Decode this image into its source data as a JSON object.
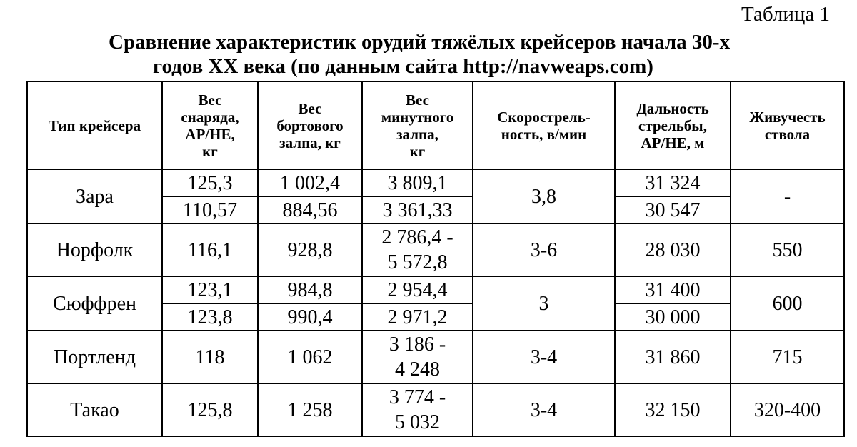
{
  "table_label": "Таблица 1",
  "title": {
    "line1": "Сравнение характеристик орудий тяжёлых крейсеров начала 30-х",
    "line2": "годов XX века (по данным сайта http://navweaps.com)"
  },
  "headers": [
    [
      "Тип крейсера"
    ],
    [
      "Вес",
      "снаряда,",
      "AP/HE,",
      "кг"
    ],
    [
      "Вес",
      "бортового",
      "залпа, кг"
    ],
    [
      "Вес",
      "минутного",
      "залпа,",
      "кг"
    ],
    [
      "Скорострель-",
      "ность, в/мин"
    ],
    [
      "Дальность",
      "стрельбы,",
      "AP/HE, м"
    ],
    [
      "Живучесть",
      "ствола"
    ]
  ],
  "rows": {
    "zara": {
      "name": "Зара",
      "shell": [
        "125,3",
        "110,57"
      ],
      "broadside": [
        "1 002,4",
        "884,56"
      ],
      "minute": [
        "3 809,1",
        "3 361,33"
      ],
      "rate": "3,8",
      "range": [
        "31 324",
        "30 547"
      ],
      "life": "-"
    },
    "norfolk": {
      "name": "Норфолк",
      "shell": "116,1",
      "broadside": "928,8",
      "minute": [
        "2 786,4 -",
        "5 572,8"
      ],
      "rate": "3-6",
      "range": "28 030",
      "life": "550"
    },
    "suffren": {
      "name": "Сюффрен",
      "shell": [
        "123,1",
        "123,8"
      ],
      "broadside": [
        "984,8",
        "990,4"
      ],
      "minute": [
        "2 954,4",
        "2 971,2"
      ],
      "rate": "3",
      "range": [
        "31 400",
        "30 000"
      ],
      "life": "600"
    },
    "portland": {
      "name": "Портленд",
      "shell": "118",
      "broadside": "1 062",
      "minute": [
        "3 186 -",
        "4 248"
      ],
      "rate": "3-4",
      "range": "31 860",
      "life": "715"
    },
    "takao": {
      "name": "Такао",
      "shell": "125,8",
      "broadside": "1 258",
      "minute": [
        "3 774 -",
        "5 032"
      ],
      "rate": "3-4",
      "range": "32 150",
      "life": "320-400"
    }
  }
}
